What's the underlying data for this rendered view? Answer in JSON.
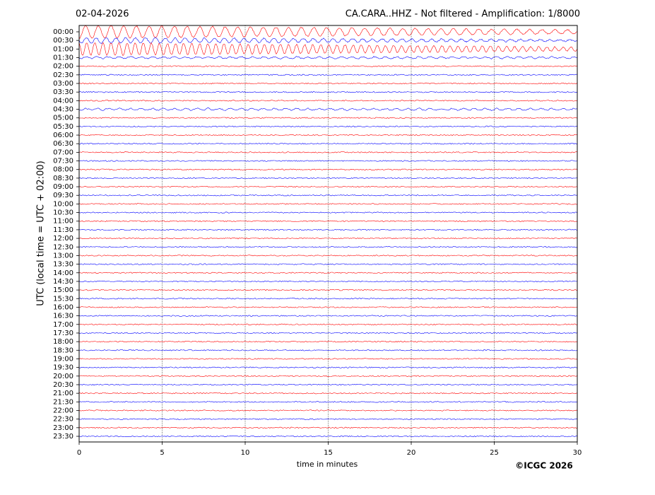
{
  "chart_data": {
    "type": "helicorder",
    "date": "02-04-2026",
    "title": "CA.CARA..HHZ - Not filtered - Amplification: 1/8000",
    "y_label": "UTC (local time = UTC + 02:00)",
    "x_label": "time in minutes",
    "copyright": "©ICGC 2026",
    "categories": [
      "00:00",
      "00:30",
      "01:00",
      "01:30",
      "02:00",
      "02:30",
      "03:00",
      "03:30",
      "04:00",
      "04:30",
      "05:00",
      "05:30",
      "06:00",
      "06:30",
      "07:00",
      "07:30",
      "08:00",
      "08:30",
      "09:00",
      "09:30",
      "10:00",
      "10:30",
      "11:00",
      "11:30",
      "12:00",
      "12:30",
      "13:00",
      "13:30",
      "14:00",
      "14:30",
      "15:00",
      "15:30",
      "16:00",
      "16:30",
      "17:00",
      "17:30",
      "18:00",
      "18:30",
      "19:00",
      "19:30",
      "20:00",
      "20:30",
      "21:00",
      "21:30",
      "22:00",
      "22:30",
      "23:00",
      "23:30"
    ],
    "colors": [
      "#ff0000",
      "#0000ff"
    ],
    "xlim": [
      0,
      30
    ],
    "xticks": [
      0,
      5,
      10,
      15,
      20,
      25,
      30
    ],
    "grid": true
  }
}
